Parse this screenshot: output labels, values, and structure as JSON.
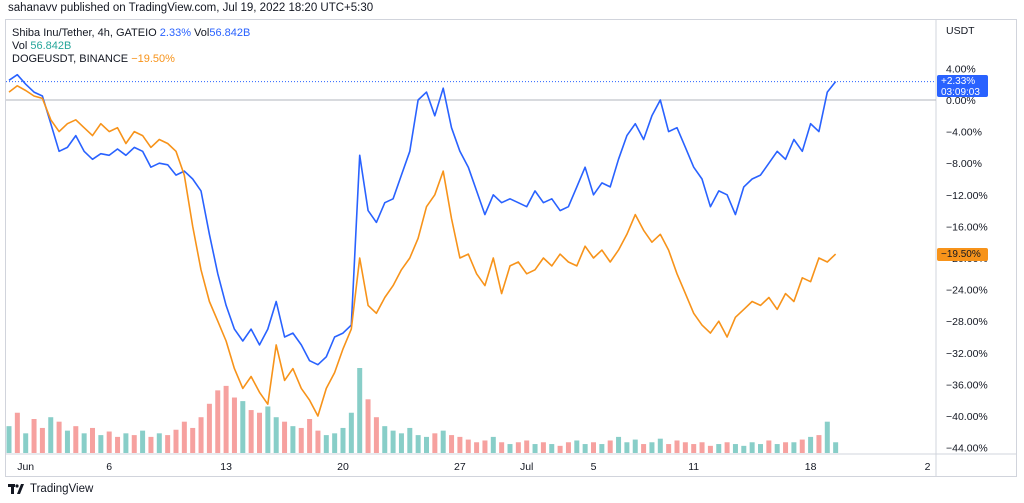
{
  "header": {
    "published_text": "sahanavv published on TradingView.com, Jul 19, 2022 18:20 UTC+5:30"
  },
  "legend": {
    "main_symbol": "Shiba Inu/Tether, 4h, GATEIO",
    "main_change": "2.33%",
    "main_vol_label": "Vol",
    "main_vol_value": "56.842B",
    "vol_label": "Vol",
    "vol_value": "56.842B",
    "compare_symbol": "DOGEUSDT, BINANCE",
    "compare_change": "−19.50%"
  },
  "axis": {
    "currency": "USDT",
    "price_badge_pct": "+2.33%",
    "price_badge_time": "03:09:03",
    "compare_badge": "−19.50%"
  },
  "footer": {
    "brand": "TradingView"
  },
  "colors": {
    "shib": "#2962ff",
    "doge": "#f7931a",
    "vol_up": "#26a69a",
    "vol_down": "#ef5350"
  },
  "chart_data": {
    "type": "line",
    "ylabel": "USDT",
    "ylim": [
      -45,
      5
    ],
    "y_ticks": [
      "4.00%",
      "0.00%",
      "−4.00%",
      "−8.00%",
      "−12.00%",
      "−16.00%",
      "−20.00%",
      "−24.00%",
      "−28.00%",
      "−32.00%",
      "−36.00%",
      "−40.00%",
      "−44.00%"
    ],
    "y_tick_values": [
      4,
      0,
      -4,
      -8,
      -12,
      -16,
      -20,
      -24,
      -28,
      -32,
      -36,
      -40,
      -44
    ],
    "x_ticks": [
      "Jun",
      "6",
      "13",
      "20",
      "27",
      "Jul",
      "5",
      "11",
      "18",
      "2"
    ],
    "x_tick_days": [
      1,
      6,
      13,
      20,
      27,
      31,
      35,
      41,
      48,
      55
    ],
    "series": [
      {
        "name": "Shiba Inu/Tether, 4h, GATEIO",
        "color": "#2962ff",
        "x_days": [
          0,
          0.5,
          1,
          1.5,
          2,
          2.5,
          3,
          3.5,
          4,
          4.5,
          5,
          5.5,
          6,
          6.5,
          7,
          7.5,
          8,
          8.5,
          9,
          9.5,
          10,
          10.5,
          11,
          11.5,
          12,
          12.5,
          13,
          13.5,
          14,
          14.5,
          15,
          15.5,
          16,
          16.5,
          17,
          17.5,
          18,
          18.5,
          19,
          19.5,
          20,
          20.5,
          21,
          21.5,
          22,
          22.5,
          23,
          23.5,
          24,
          24.5,
          25,
          25.5,
          26,
          26.5,
          27,
          27.5,
          28,
          28.5,
          29,
          29.5,
          30,
          30.5,
          31,
          31.5,
          32,
          32.5,
          33,
          33.5,
          34,
          34.5,
          35,
          35.5,
          36,
          36.5,
          37,
          37.5,
          38,
          38.5,
          39,
          39.5,
          40,
          40.5,
          41,
          41.5,
          42,
          42.5,
          43,
          43.5,
          44,
          44.5,
          45,
          45.5,
          46,
          46.5,
          47,
          47.5,
          48,
          48.5,
          49,
          49.5
        ],
        "values": [
          2.5,
          3.2,
          2.0,
          1.0,
          0.5,
          -3.0,
          -6.5,
          -6.0,
          -4.5,
          -6.5,
          -7.5,
          -6.8,
          -7.0,
          -6.2,
          -7.0,
          -6.0,
          -6.5,
          -8.5,
          -8.0,
          -8.2,
          -9.5,
          -9.0,
          -10.0,
          -11.5,
          -17.0,
          -22.0,
          -26.0,
          -29.0,
          -30.5,
          -29.0,
          -31.0,
          -29.0,
          -25.5,
          -30.0,
          -29.5,
          -31.0,
          -33.0,
          -33.5,
          -32.5,
          -30.0,
          -29.5,
          -28.5,
          -7.0,
          -14.0,
          -15.5,
          -13.0,
          -12.5,
          -9.5,
          -6.5,
          0.0,
          1.0,
          -2.0,
          1.5,
          -3.5,
          -6.5,
          -8.5,
          -11.5,
          -14.5,
          -12.0,
          -13.0,
          -12.5,
          -13.0,
          -13.5,
          -11.5,
          -13.0,
          -12.5,
          -14.0,
          -13.5,
          -11.0,
          -8.5,
          -12.0,
          -10.5,
          -11.0,
          -7.5,
          -4.5,
          -3.0,
          -5.0,
          -2.0,
          0.0,
          -4.0,
          -3.5,
          -6.0,
          -8.5,
          -10.0,
          -13.5,
          -11.5,
          -12.0,
          -14.5,
          -11.0,
          -10.0,
          -9.5,
          -8.0,
          -6.5,
          -7.5,
          -5.0,
          -6.5,
          -3.0,
          -4.0,
          1.0,
          2.33
        ]
      },
      {
        "name": "DOGEUSDT, BINANCE",
        "color": "#f7931a",
        "x_days": [
          0,
          0.5,
          1,
          1.5,
          2,
          2.5,
          3,
          3.5,
          4,
          4.5,
          5,
          5.5,
          6,
          6.5,
          7,
          7.5,
          8,
          8.5,
          9,
          9.5,
          10,
          10.5,
          11,
          11.5,
          12,
          12.5,
          13,
          13.5,
          14,
          14.5,
          15,
          15.5,
          16,
          16.5,
          17,
          17.5,
          18,
          18.5,
          19,
          19.5,
          20,
          20.5,
          21,
          21.5,
          22,
          22.5,
          23,
          23.5,
          24,
          24.5,
          25,
          25.5,
          26,
          26.5,
          27,
          27.5,
          28,
          28.5,
          29,
          29.5,
          30,
          30.5,
          31,
          31.5,
          32,
          32.5,
          33,
          33.5,
          34,
          34.5,
          35,
          35.5,
          36,
          36.5,
          37,
          37.5,
          38,
          38.5,
          39,
          39.5,
          40,
          40.5,
          41,
          41.5,
          42,
          42.5,
          43,
          43.5,
          44,
          44.5,
          45,
          45.5,
          46,
          46.5,
          47,
          47.5,
          48,
          48.5,
          49,
          49.5
        ],
        "values": [
          1.0,
          1.8,
          1.2,
          0.5,
          0.2,
          -2.5,
          -4.0,
          -3.0,
          -2.5,
          -3.5,
          -4.5,
          -3.0,
          -4.0,
          -3.5,
          -5.5,
          -4.0,
          -4.5,
          -6.0,
          -5.0,
          -5.5,
          -6.5,
          -9.5,
          -16.0,
          -21.5,
          -25.5,
          -28.0,
          -30.5,
          -34.0,
          -36.5,
          -35.0,
          -37.0,
          -38.5,
          -31.0,
          -35.5,
          -34.0,
          -36.5,
          -38.0,
          -40.0,
          -36.5,
          -34.5,
          -31.5,
          -29.0,
          -20.0,
          -26.0,
          -27.0,
          -25.0,
          -23.5,
          -21.5,
          -20.0,
          -17.5,
          -13.5,
          -12.0,
          -9.0,
          -15.0,
          -20.0,
          -19.5,
          -22.0,
          -23.5,
          -20.0,
          -24.5,
          -21.0,
          -20.5,
          -22.0,
          -21.5,
          -20.0,
          -21.0,
          -19.5,
          -20.5,
          -21.0,
          -18.5,
          -20.0,
          -19.0,
          -20.5,
          -19.0,
          -17.0,
          -14.5,
          -16.5,
          -18.0,
          -17.0,
          -19.0,
          -22.0,
          -24.5,
          -27.0,
          -28.5,
          -29.5,
          -28.0,
          -30.0,
          -27.5,
          -26.5,
          -25.5,
          -26.0,
          -25.0,
          -26.5,
          -24.5,
          -25.5,
          -22.5,
          -23.0,
          -20.0,
          -20.5,
          -19.5
        ]
      }
    ],
    "volume": {
      "x_days": [
        0,
        0.5,
        1,
        1.5,
        2,
        2.5,
        3,
        3.5,
        4,
        4.5,
        5,
        5.5,
        6,
        6.5,
        7,
        7.5,
        8,
        8.5,
        9,
        9.5,
        10,
        10.5,
        11,
        11.5,
        12,
        12.5,
        13,
        13.5,
        14,
        14.5,
        15,
        15.5,
        16,
        16.5,
        17,
        17.5,
        18,
        18.5,
        19,
        19.5,
        20,
        20.5,
        21,
        21.5,
        22,
        22.5,
        23,
        23.5,
        24,
        24.5,
        25,
        25.5,
        26,
        26.5,
        27,
        27.5,
        28,
        28.5,
        29,
        29.5,
        30,
        30.5,
        31,
        31.5,
        32,
        32.5,
        33,
        33.5,
        34,
        34.5,
        35,
        35.5,
        36,
        36.5,
        37,
        37.5,
        38,
        38.5,
        39,
        39.5,
        40,
        40.5,
        41,
        41.5,
        42,
        42.5,
        43,
        43.5,
        44,
        44.5,
        45,
        45.5,
        46,
        46.5,
        47,
        47.5,
        48,
        48.5,
        49,
        49.5
      ],
      "values": [
        30,
        45,
        22,
        38,
        28,
        40,
        35,
        25,
        30,
        22,
        28,
        20,
        24,
        18,
        22,
        20,
        25,
        18,
        22,
        20,
        26,
        35,
        28,
        40,
        55,
        70,
        75,
        62,
        58,
        48,
        45,
        52,
        40,
        35,
        30,
        28,
        38,
        25,
        20,
        22,
        28,
        45,
        95,
        60,
        40,
        30,
        25,
        22,
        28,
        20,
        18,
        22,
        25,
        20,
        18,
        15,
        12,
        14,
        18,
        12,
        10,
        12,
        14,
        10,
        12,
        10,
        8,
        12,
        14,
        10,
        12,
        10,
        14,
        18,
        12,
        15,
        10,
        12,
        16,
        10,
        14,
        12,
        10,
        12,
        8,
        10,
        12,
        10,
        8,
        12,
        10,
        14,
        10,
        12,
        12,
        15,
        18,
        20,
        35,
        12
      ],
      "up": [
        1,
        0,
        1,
        0,
        0,
        1,
        0,
        1,
        0,
        1,
        0,
        1,
        0,
        0,
        1,
        0,
        1,
        0,
        1,
        0,
        0,
        0,
        0,
        0,
        0,
        0,
        0,
        0,
        1,
        0,
        0,
        1,
        1,
        0,
        1,
        0,
        0,
        0,
        1,
        1,
        1,
        1,
        1,
        0,
        0,
        1,
        1,
        1,
        1,
        1,
        1,
        0,
        1,
        0,
        0,
        0,
        0,
        0,
        1,
        0,
        1,
        0,
        0,
        1,
        0,
        1,
        0,
        0,
        1,
        1,
        0,
        1,
        0,
        1,
        1,
        1,
        0,
        1,
        1,
        0,
        0,
        0,
        0,
        0,
        0,
        1,
        0,
        1,
        1,
        1,
        1,
        0,
        1,
        0,
        1,
        0,
        1,
        0,
        1,
        1
      ]
    }
  }
}
